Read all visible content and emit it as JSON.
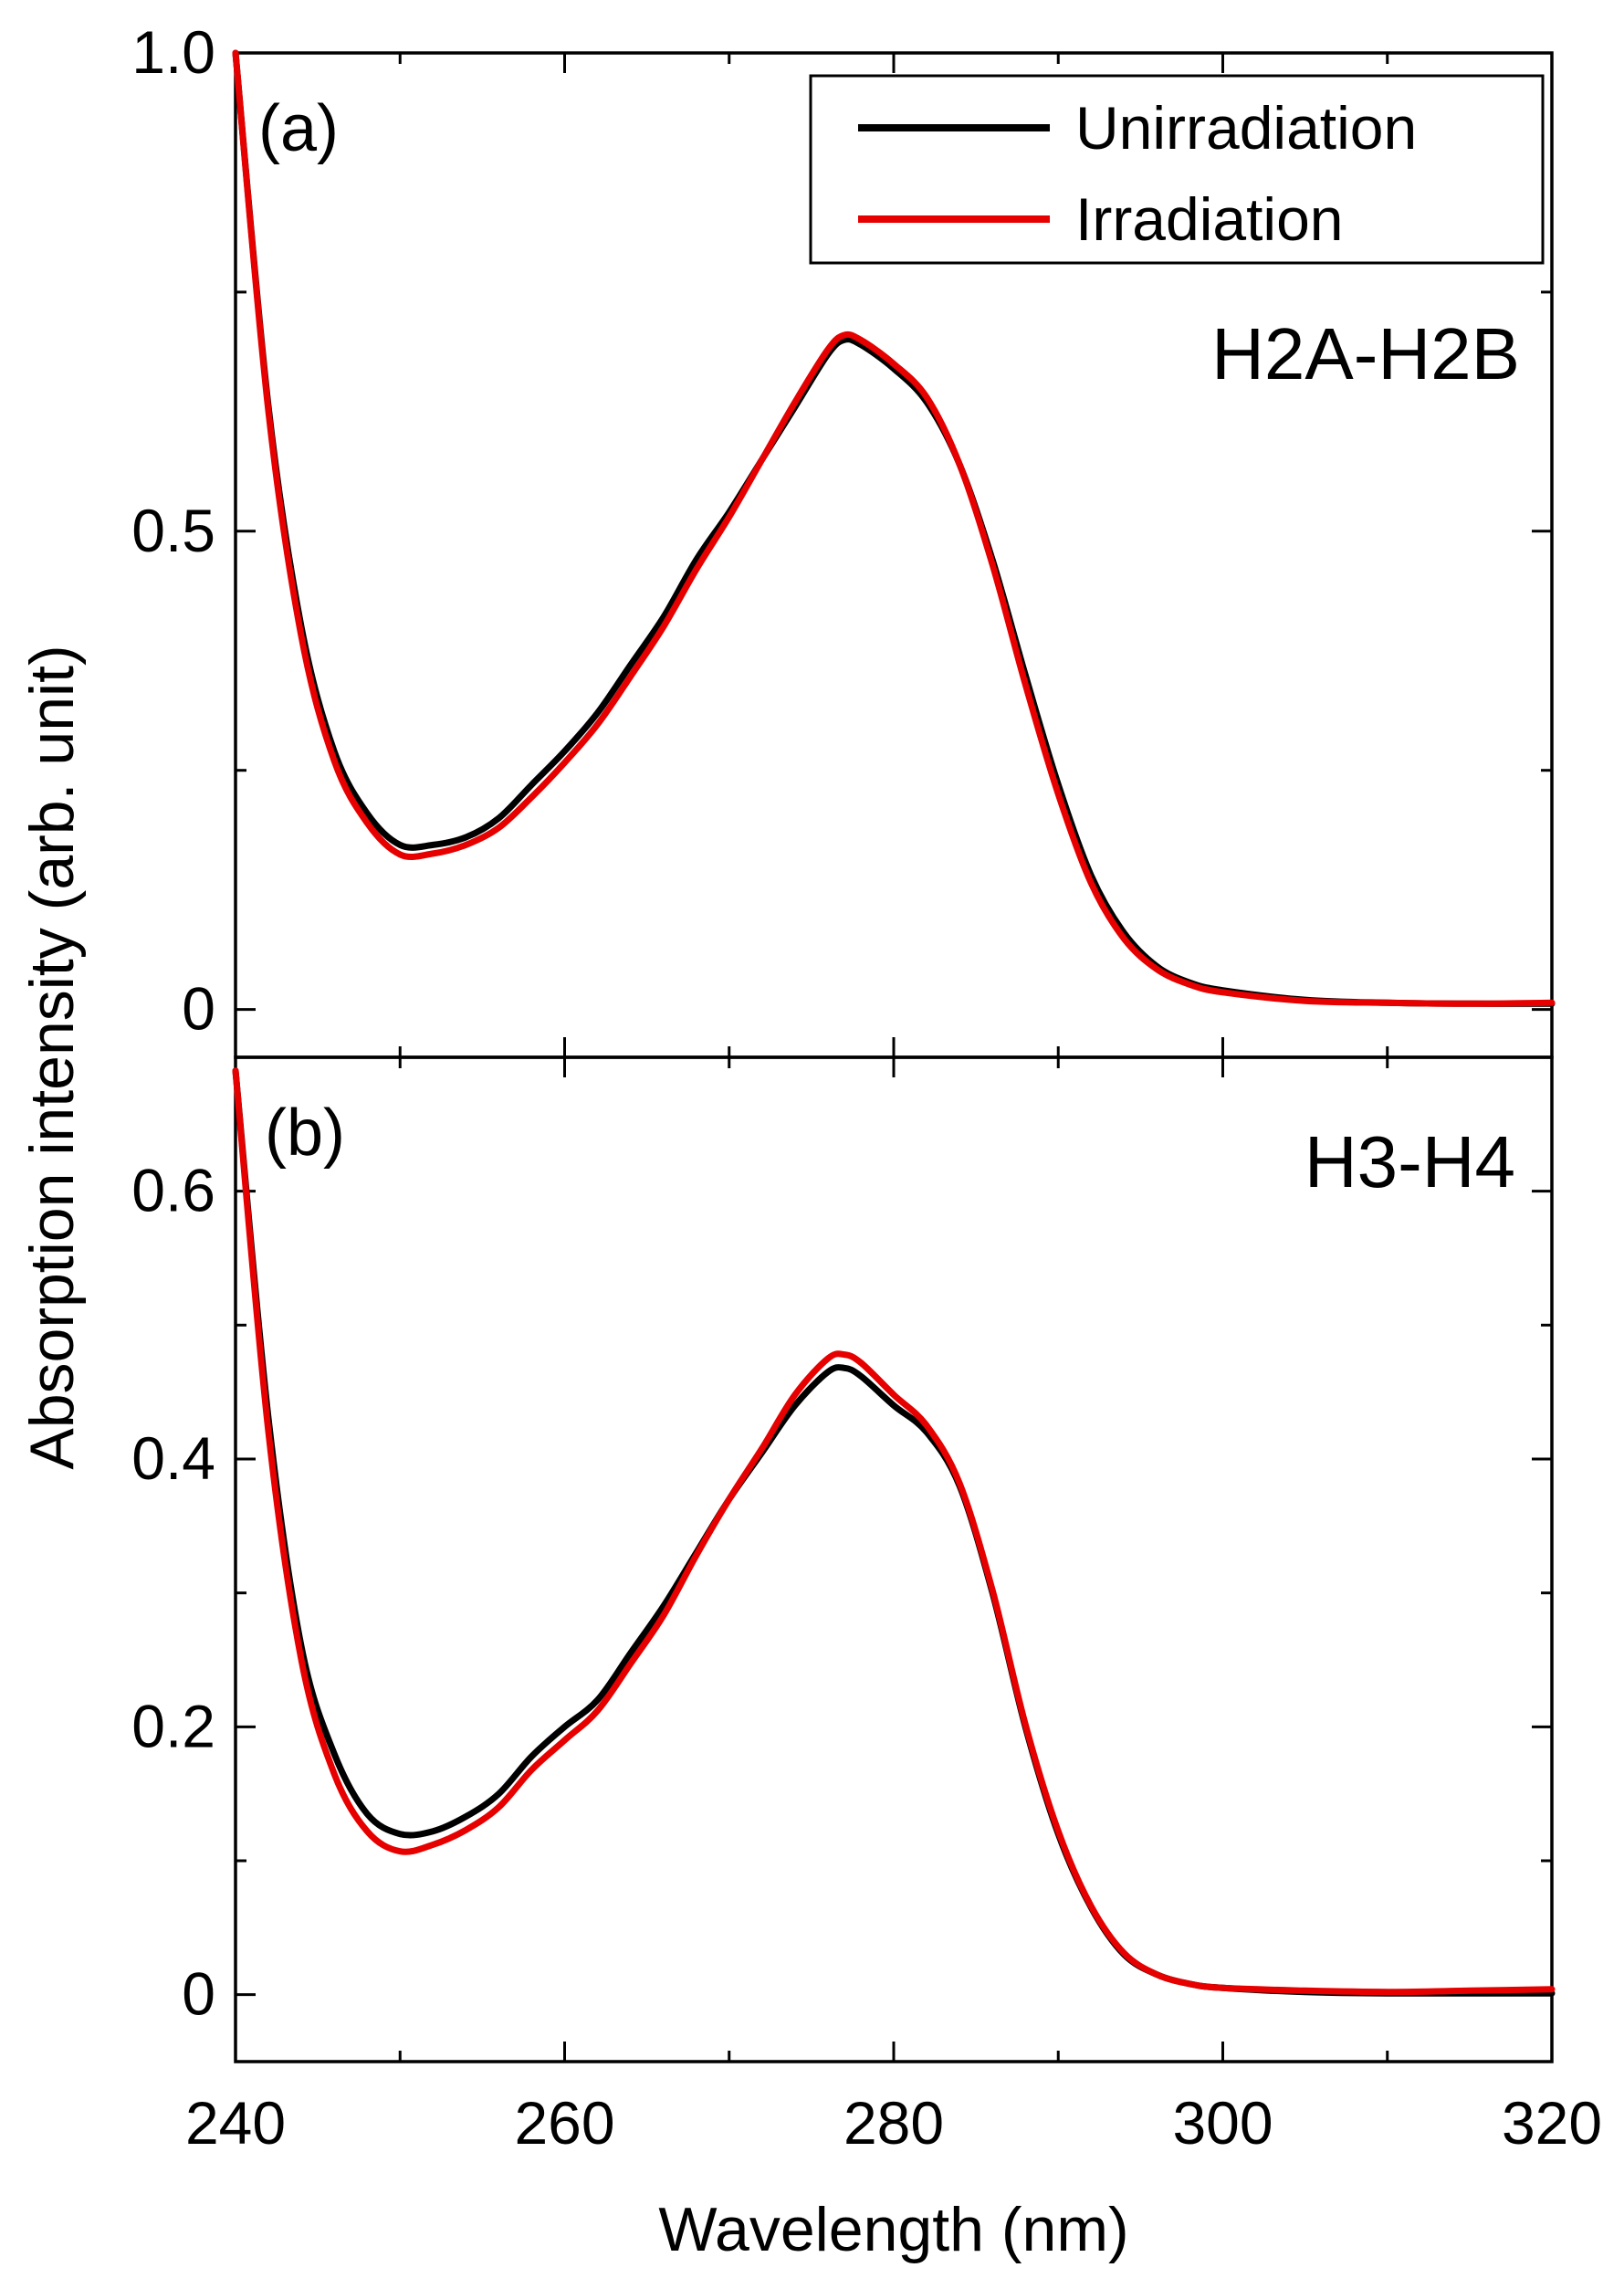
{
  "chart_data": [
    {
      "type": "line",
      "panel_label": "(a)",
      "sample_label": "H2A-H2B",
      "xlabel": "Wavelength (nm)",
      "ylabel": "Absorption intensity (arb. unit)",
      "xlim": [
        240,
        320
      ],
      "ylim": [
        -0.05,
        1.0
      ],
      "xticks": [
        240,
        260,
        280,
        300,
        320
      ],
      "xtick_labels": [
        "240",
        "260",
        "280",
        "300",
        "320"
      ],
      "yticks": [
        0,
        0.5,
        1.0
      ],
      "ytick_labels": [
        "0",
        "0.5",
        "1.0"
      ],
      "legend": {
        "position": "top-right",
        "entries": [
          "Unirradiation",
          "Irradiation"
        ]
      },
      "x": [
        240,
        242,
        244,
        246,
        248,
        250,
        252,
        254,
        256,
        258,
        260,
        262,
        264,
        266,
        268,
        270,
        272,
        274,
        276,
        277,
        278,
        280,
        282,
        284,
        286,
        288,
        290,
        292,
        294,
        296,
        298,
        300,
        305,
        310,
        315,
        320
      ],
      "series": [
        {
          "name": "Unirradiation",
          "color": "#000000",
          "values": [
            1.0,
            0.63,
            0.4,
            0.27,
            0.205,
            0.172,
            0.172,
            0.18,
            0.2,
            0.235,
            0.27,
            0.31,
            0.36,
            0.41,
            0.47,
            0.52,
            0.575,
            0.63,
            0.685,
            0.7,
            0.695,
            0.67,
            0.635,
            0.57,
            0.47,
            0.35,
            0.235,
            0.14,
            0.08,
            0.045,
            0.028,
            0.02,
            0.01,
            0.007,
            0.006,
            0.006
          ]
        },
        {
          "name": "Irradiation",
          "color": "#e60000",
          "values": [
            1.0,
            0.625,
            0.39,
            0.26,
            0.195,
            0.162,
            0.163,
            0.172,
            0.19,
            0.222,
            0.258,
            0.298,
            0.348,
            0.4,
            0.46,
            0.515,
            0.575,
            0.635,
            0.69,
            0.705,
            0.7,
            0.675,
            0.64,
            0.57,
            0.465,
            0.34,
            0.225,
            0.132,
            0.074,
            0.042,
            0.026,
            0.018,
            0.009,
            0.007,
            0.006,
            0.007
          ]
        }
      ]
    },
    {
      "type": "line",
      "panel_label": "(b)",
      "sample_label": "H3-H4",
      "xlabel": "Wavelength (nm)",
      "ylabel": "Absorption intensity (arb. unit)",
      "xlim": [
        240,
        320
      ],
      "ylim": [
        -0.05,
        0.7
      ],
      "xticks": [
        240,
        260,
        280,
        300,
        320
      ],
      "xtick_labels": [
        "240",
        "260",
        "280",
        "300",
        "320"
      ],
      "yticks": [
        0,
        0.2,
        0.4,
        0.6
      ],
      "ytick_labels": [
        "0",
        "0.2",
        "0.4",
        "0.6"
      ],
      "x": [
        240,
        242,
        244,
        246,
        248,
        250,
        252,
        254,
        256,
        258,
        260,
        262,
        264,
        266,
        268,
        270,
        272,
        274,
        276,
        277,
        278,
        280,
        282,
        284,
        286,
        288,
        290,
        292,
        294,
        296,
        298,
        300,
        305,
        310,
        315,
        320
      ],
      "series": [
        {
          "name": "Unirradiation",
          "color": "#000000",
          "values": [
            0.69,
            0.43,
            0.26,
            0.18,
            0.135,
            0.12,
            0.122,
            0.133,
            0.15,
            0.178,
            0.2,
            0.22,
            0.255,
            0.29,
            0.33,
            0.37,
            0.405,
            0.44,
            0.465,
            0.468,
            0.462,
            0.44,
            0.42,
            0.38,
            0.3,
            0.2,
            0.12,
            0.065,
            0.03,
            0.015,
            0.008,
            0.005,
            0.002,
            0.001,
            0.001,
            0.001
          ]
        },
        {
          "name": "Irradiation",
          "color": "#e60000",
          "values": [
            0.69,
            0.42,
            0.25,
            0.165,
            0.122,
            0.107,
            0.112,
            0.123,
            0.14,
            0.168,
            0.19,
            0.212,
            0.247,
            0.283,
            0.328,
            0.37,
            0.408,
            0.448,
            0.475,
            0.478,
            0.472,
            0.448,
            0.425,
            0.382,
            0.302,
            0.202,
            0.122,
            0.066,
            0.031,
            0.015,
            0.008,
            0.005,
            0.003,
            0.002,
            0.003,
            0.004
          ]
        }
      ]
    }
  ]
}
